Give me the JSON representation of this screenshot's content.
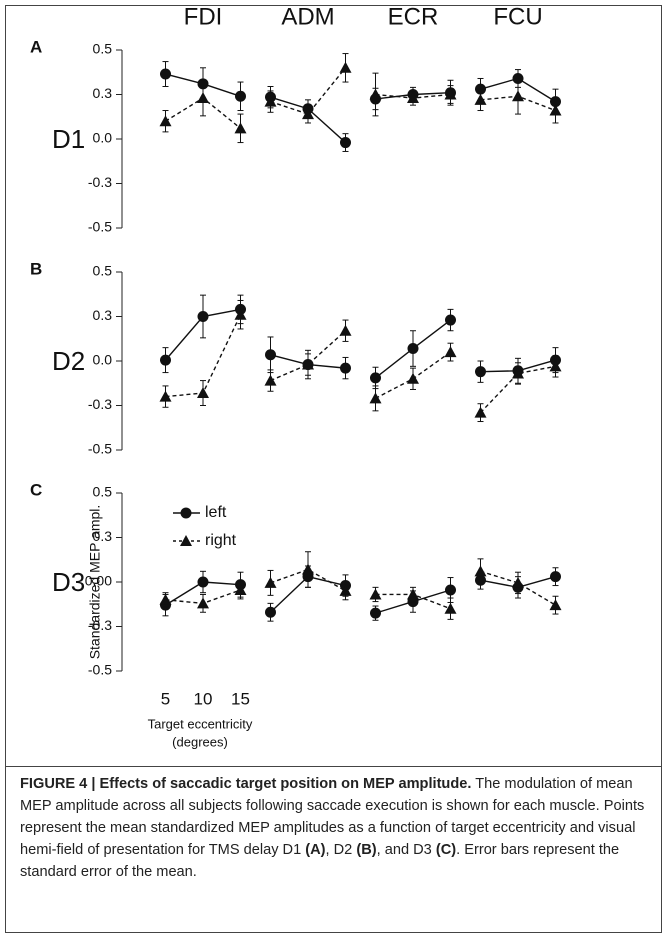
{
  "chart_data": [
    {
      "type": "line",
      "panel": "A",
      "row_label": "D1",
      "x": [
        5,
        10,
        15
      ],
      "xlim": [
        3,
        17
      ],
      "ylim": [
        -0.5,
        0.5
      ],
      "yticks": [
        0.5,
        {
          "value": 0.25,
          "label": "0.3"
        },
        {
          "value": 0,
          "label": "0.0"
        },
        {
          "value": -0.25,
          "label": "-0.3"
        },
        -0.5
      ],
      "groups": [
        {
          "title": "FDI",
          "series": [
            {
              "values": [
                0.365,
                0.31,
                0.24
              ],
              "errors": [
                0.07,
                0.09,
                0.08
              ]
            },
            {
              "values": [
                0.1,
                0.23,
                0.06
              ],
              "errors": [
                0.06,
                0.1,
                0.08
              ]
            }
          ]
        },
        {
          "title": "ADM",
          "series": [
            {
              "values": [
                0.235,
                0.17,
                -0.02
              ],
              "errors": [
                0.06,
                0.05,
                0.05
              ]
            },
            {
              "values": [
                0.21,
                0.14,
                0.4
              ],
              "errors": [
                0.06,
                0.05,
                0.08
              ]
            }
          ]
        },
        {
          "title": "ECR",
          "series": [
            {
              "values": [
                0.225,
                0.25,
                0.26
              ],
              "errors": [
                0.06,
                0.04,
                0.07
              ]
            },
            {
              "values": [
                0.25,
                0.23,
                0.25
              ],
              "errors": [
                0.12,
                0.04,
                0.05
              ]
            }
          ]
        },
        {
          "title": "FCU",
          "series": [
            {
              "values": [
                0.28,
                0.34,
                0.21
              ],
              "errors": [
                0.06,
                0.05,
                0.07
              ]
            },
            {
              "values": [
                0.22,
                0.24,
                0.16
              ],
              "errors": [
                0.06,
                0.1,
                0.07
              ]
            }
          ]
        }
      ]
    },
    {
      "type": "line",
      "panel": "B",
      "row_label": "D2",
      "x": [
        5,
        10,
        15
      ],
      "xlim": [
        3,
        17
      ],
      "ylim": [
        -0.5,
        0.5
      ],
      "yticks": [
        0.5,
        {
          "value": 0.25,
          "label": "0.3"
        },
        {
          "value": 0,
          "label": "0.0"
        },
        {
          "value": -0.25,
          "label": "-0.3"
        },
        -0.5
      ],
      "groups": [
        {
          "series": [
            {
              "values": [
                0.005,
                0.25,
                0.29
              ],
              "errors": [
                0.07,
                0.12,
                0.08
              ]
            },
            {
              "values": [
                -0.2,
                -0.18,
                0.26
              ],
              "errors": [
                0.06,
                0.07,
                0.08
              ]
            }
          ]
        },
        {
          "series": [
            {
              "values": [
                0.035,
                -0.02,
                -0.04
              ],
              "errors": [
                0.1,
                0.08,
                0.06
              ]
            },
            {
              "values": [
                -0.11,
                -0.02,
                0.17
              ],
              "errors": [
                0.06,
                0.06,
                0.06
              ]
            }
          ]
        },
        {
          "series": [
            {
              "values": [
                -0.095,
                0.07,
                0.23
              ],
              "errors": [
                0.06,
                0.1,
                0.06
              ]
            },
            {
              "values": [
                -0.21,
                -0.1,
                0.05
              ],
              "errors": [
                0.07,
                0.06,
                0.05
              ]
            }
          ]
        },
        {
          "series": [
            {
              "values": [
                -0.06,
                -0.055,
                0.005
              ],
              "errors": [
                0.06,
                0.07,
                0.07
              ]
            },
            {
              "values": [
                -0.29,
                -0.07,
                -0.03
              ],
              "errors": [
                0.05,
                0.06,
                0.06
              ]
            }
          ]
        }
      ]
    },
    {
      "type": "line",
      "panel": "C",
      "row_label": "D3",
      "x": [
        5,
        10,
        15
      ],
      "xlim": [
        3,
        17
      ],
      "ylim": [
        -0.5,
        0.5
      ],
      "yticks": [
        0.5,
        {
          "value": 0.25,
          "label": "0.3"
        },
        {
          "value": 0,
          "label": "0.00"
        },
        {
          "value": -0.25,
          "label": "-0.3"
        },
        -0.5
      ],
      "xticks": [
        5,
        10,
        15
      ],
      "x_label": [
        "Target eccentricity",
        "(degrees)"
      ],
      "y_label": "Standardized MEP ampl.",
      "legend": [
        {
          "name": "left",
          "marker": "circle",
          "dashed": false
        },
        {
          "name": "right",
          "marker": "triangle",
          "dashed": true
        }
      ],
      "groups": [
        {
          "series": [
            {
              "values": [
                -0.13,
                0.0,
                -0.015
              ],
              "errors": [
                0.06,
                0.06,
                0.07
              ]
            },
            {
              "values": [
                -0.1,
                -0.12,
                -0.045
              ],
              "errors": [
                0.04,
                0.05,
                0.05
              ]
            }
          ]
        },
        {
          "series": [
            {
              "values": [
                -0.17,
                0.03,
                -0.02
              ],
              "errors": [
                0.05,
                0.06,
                0.06
              ]
            },
            {
              "values": [
                -0.005,
                0.07,
                -0.05
              ],
              "errors": [
                0.07,
                0.1,
                0.05
              ]
            }
          ]
        },
        {
          "series": [
            {
              "values": [
                -0.175,
                -0.11,
                -0.045
              ],
              "errors": [
                0.04,
                0.06,
                0.07
              ]
            },
            {
              "values": [
                -0.07,
                -0.07,
                -0.15
              ],
              "errors": [
                0.04,
                0.04,
                0.06
              ]
            }
          ]
        },
        {
          "series": [
            {
              "values": [
                0.01,
                -0.03,
                0.03
              ],
              "errors": [
                0.05,
                0.06,
                0.05
              ]
            },
            {
              "values": [
                0.06,
                -0.005,
                -0.13
              ],
              "errors": [
                0.07,
                0.06,
                0.05
              ]
            }
          ]
        }
      ]
    }
  ],
  "caption": {
    "segments": [
      {
        "text": "FIGURE 4 | Effects of saccadic target position on MEP amplitude.",
        "bold": true
      },
      {
        "text": " The modulation of mean MEP amplitude across all subjects following saccade execution is shown for each muscle. Points represent the mean standardized MEP amplitudes as a function of target eccentricity and visual hemi-field of presentation for TMS delay D1 ",
        "bold": false
      },
      {
        "text": "(A)",
        "bold": true
      },
      {
        "text": ", D2 ",
        "bold": false
      },
      {
        "text": "(B)",
        "bold": true
      },
      {
        "text": ", and D3 ",
        "bold": false
      },
      {
        "text": "(C)",
        "bold": true
      },
      {
        "text": ". Error bars represent the standard error of the mean.",
        "bold": false
      }
    ]
  }
}
